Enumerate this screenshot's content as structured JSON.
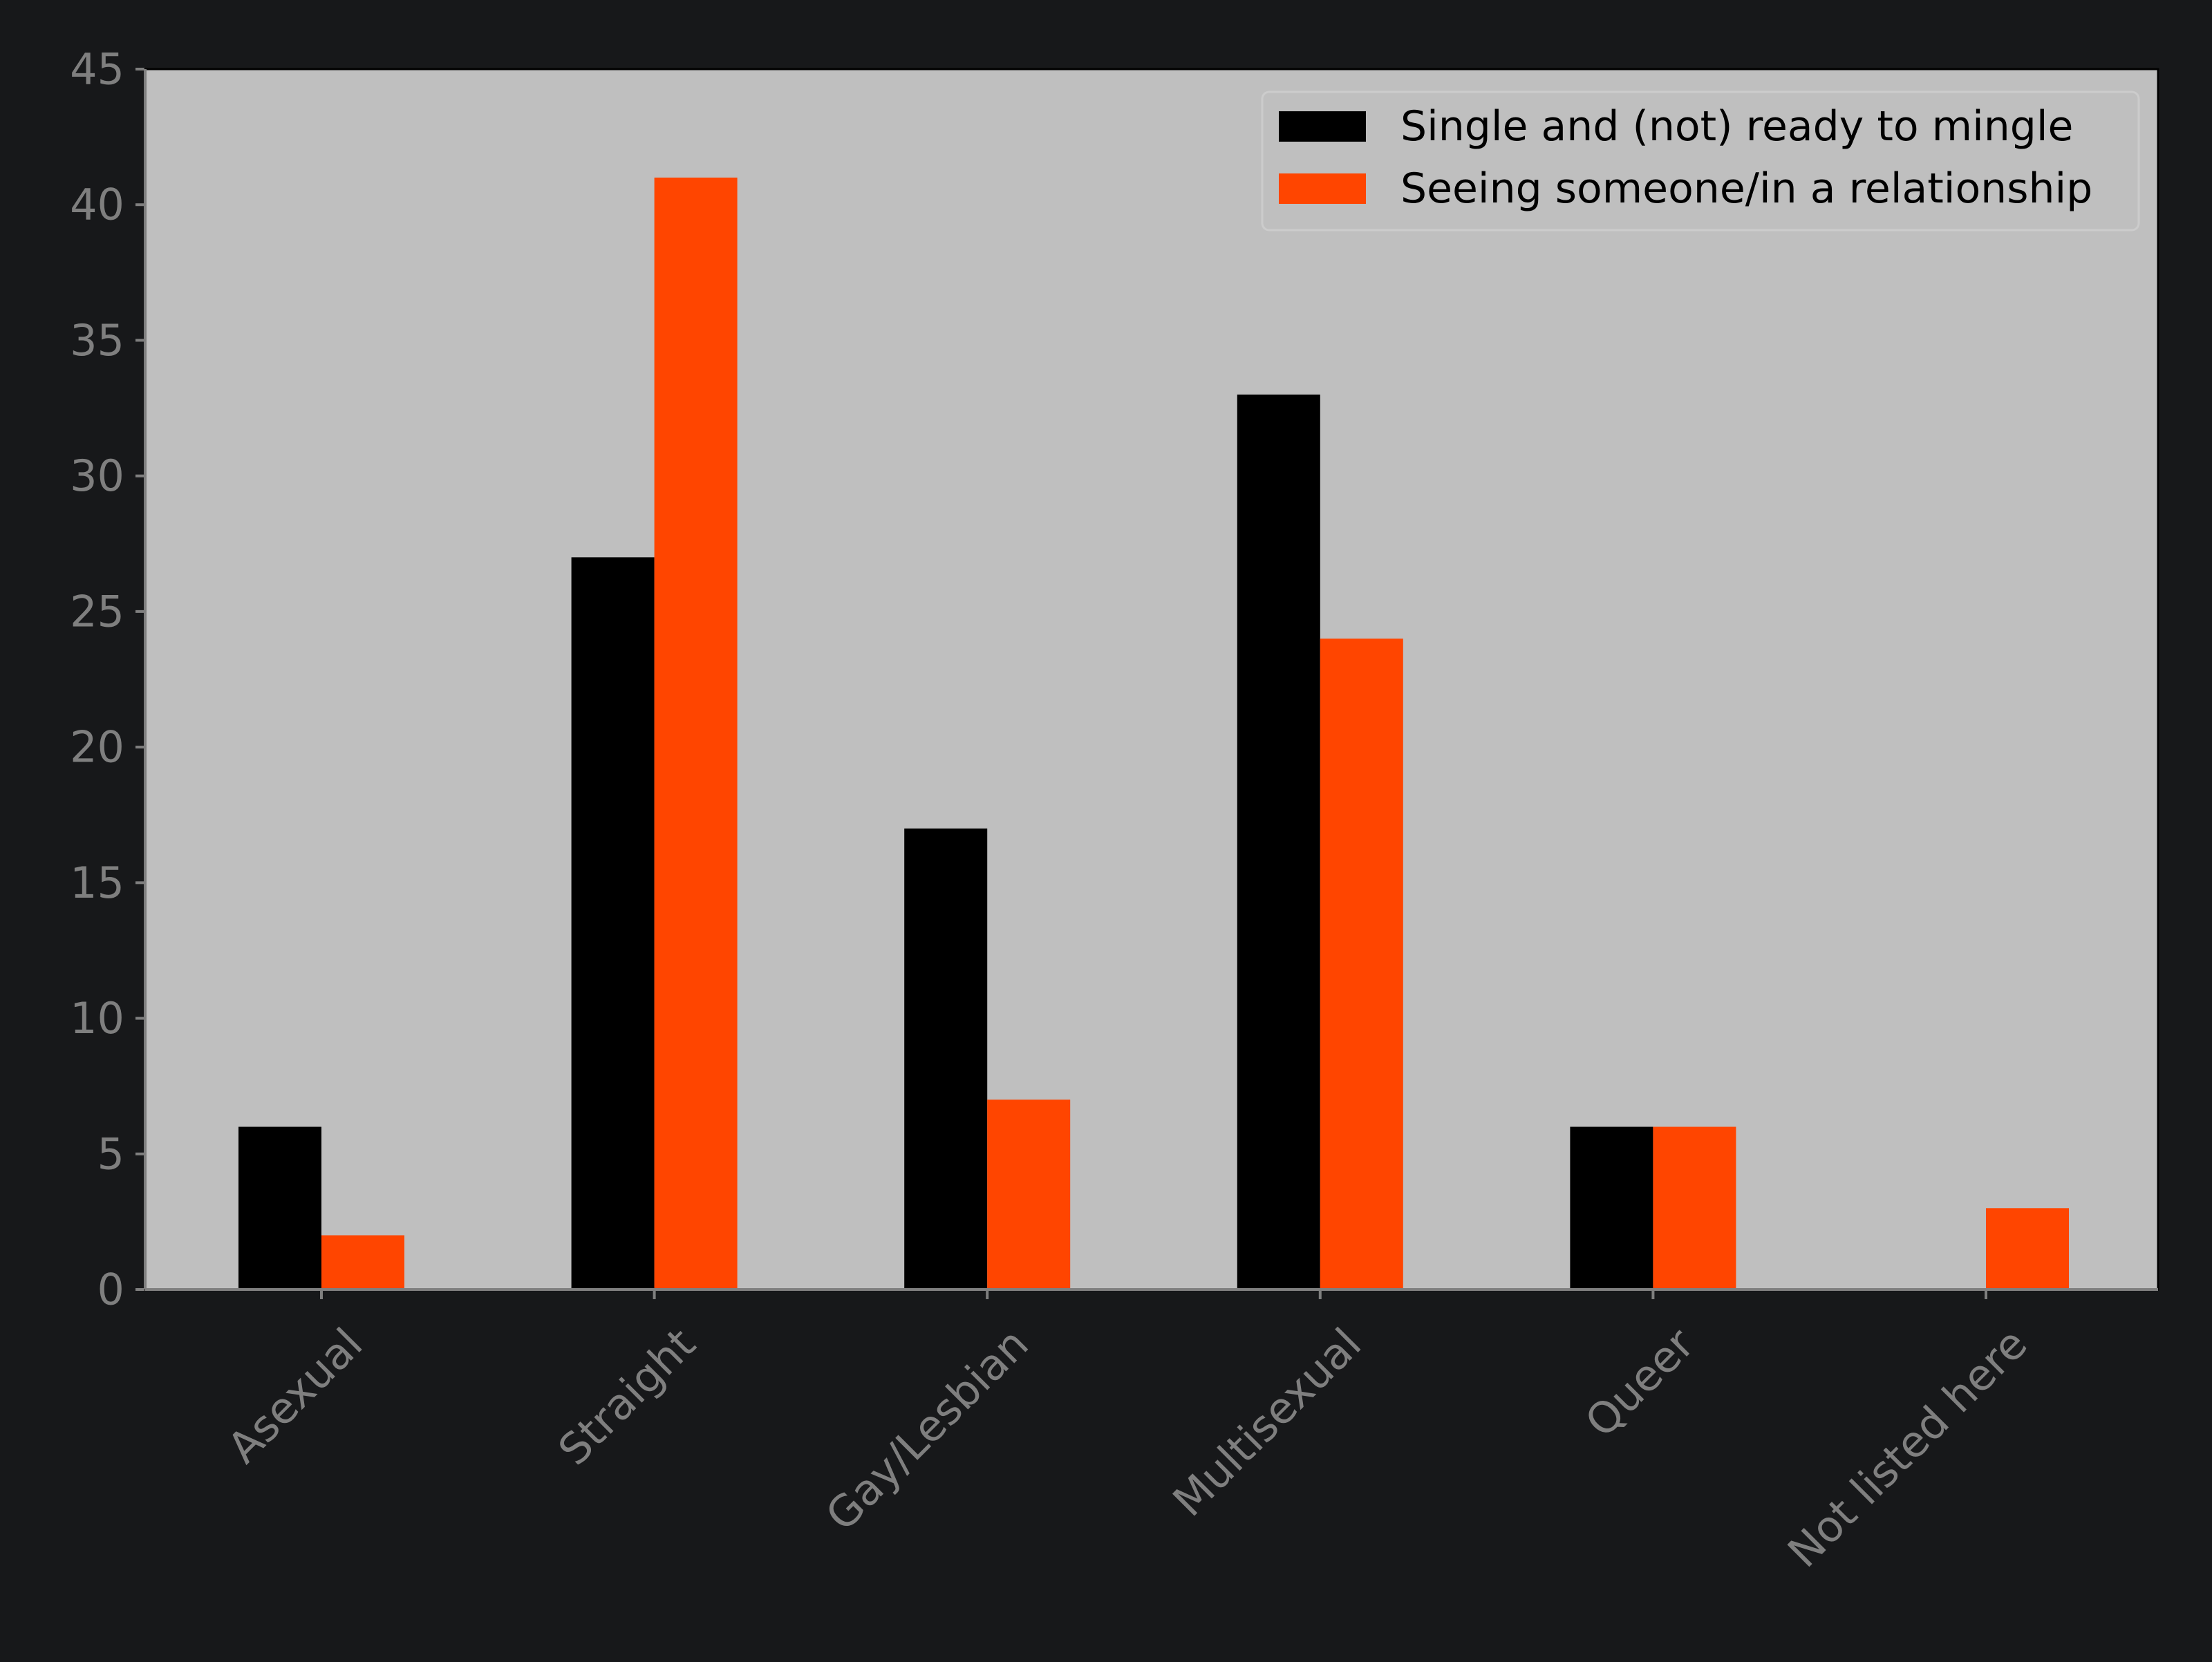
{
  "chart_data": {
    "type": "bar",
    "title": "",
    "xlabel": "",
    "ylabel": "",
    "categories": [
      "Asexual",
      "Straight",
      "Gay/Lesbian",
      "Multisexual",
      "Queer",
      "Not listed here"
    ],
    "series": [
      {
        "name": "Single and (not) ready to mingle",
        "color": "#000000",
        "values": [
          6,
          27,
          17,
          33,
          6,
          0
        ]
      },
      {
        "name": "Seeing someone/in a relationship",
        "color": "#ff4500",
        "values": [
          2,
          41,
          7,
          24,
          6,
          3
        ]
      }
    ],
    "ylim": [
      0,
      45
    ],
    "yticks": [
      0,
      5,
      10,
      15,
      20,
      25,
      30,
      35,
      40,
      45
    ],
    "grid": false,
    "legend_position": "top-right",
    "colors": {
      "page_background": "#17181a",
      "plot_background": "#bfbfbf",
      "tick_text": "#7f7f7f",
      "legend_text": "#000000"
    }
  }
}
